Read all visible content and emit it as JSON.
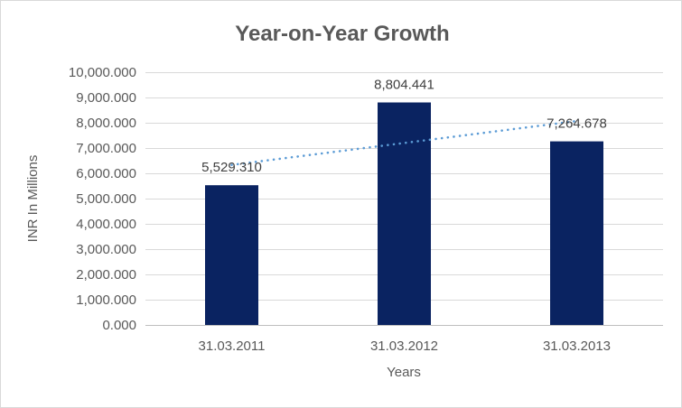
{
  "window": {
    "background": "#ffffff",
    "border_color": "#d9d9d9"
  },
  "chart_data": {
    "type": "bar",
    "title": "Year-on-Year Growth",
    "xlabel": "Years",
    "ylabel": "INR In Millions",
    "categories": [
      "31.03.2011",
      "31.03.2012",
      "31.03.2013"
    ],
    "values": [
      5529.31,
      8804.441,
      7264.678
    ],
    "data_labels": [
      "5,529.310",
      "8,804.441",
      "7,264.678"
    ],
    "ylim": [
      0,
      10000
    ],
    "ytick_step": 1000,
    "ytick_labels": [
      "0.000",
      "1,000.000",
      "2,000.000",
      "3,000.000",
      "4,000.000",
      "5,000.000",
      "6,000.000",
      "7,000.000",
      "8,000.000",
      "9,000.000",
      "10,000.000"
    ],
    "grid": true,
    "legend": "none",
    "trendline": {
      "type": "linear",
      "style": "dotted",
      "series": "values"
    },
    "colors": {
      "bar": "#0a2361",
      "trendline": "#5b9bd5",
      "gridline": "#d9d9d9",
      "axis_line": "#bfbfbf",
      "tick_text": "#595959",
      "title_text": "#595959",
      "axis_title_text": "#595959",
      "data_label_text": "#404040"
    }
  }
}
